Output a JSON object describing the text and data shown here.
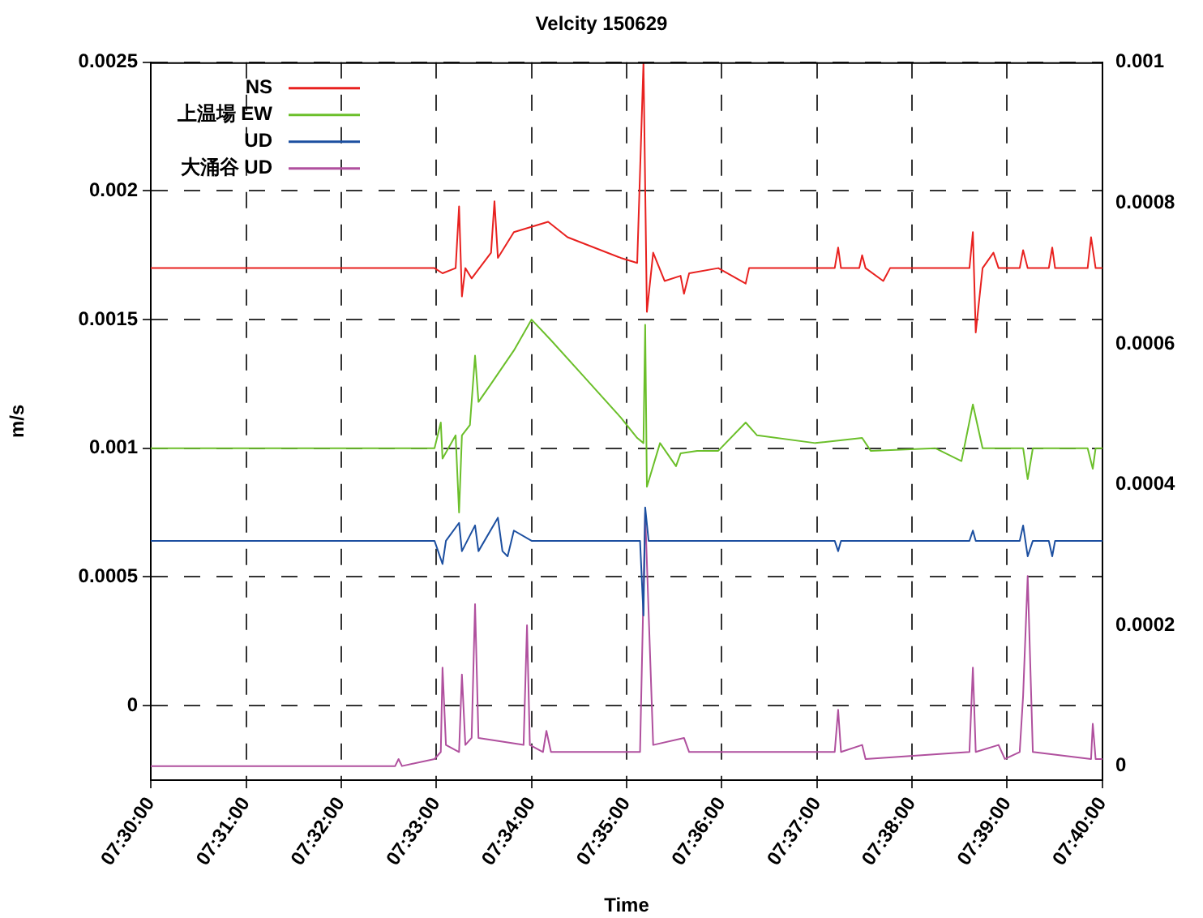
{
  "chart_data": {
    "type": "line",
    "title": "Velcity 150629",
    "xlabel": "Time",
    "ylabel": "m/s",
    "xlim": [
      7.5,
      7.6667
    ],
    "xticks": [
      {
        "value": 7.5,
        "label": "07:30:00"
      },
      {
        "value": 7.5167,
        "label": "07:31:00"
      },
      {
        "value": 7.5333,
        "label": "07:32:00"
      },
      {
        "value": 7.55,
        "label": "07:33:00"
      },
      {
        "value": 7.5667,
        "label": "07:34:00"
      },
      {
        "value": 7.5833,
        "label": "07:35:00"
      },
      {
        "value": 7.6,
        "label": "07:36:00"
      },
      {
        "value": 7.6167,
        "label": "07:37:00"
      },
      {
        "value": 7.6333,
        "label": "07:38:00"
      },
      {
        "value": 7.65,
        "label": "07:39:00"
      },
      {
        "value": 7.6667,
        "label": "07:40:00"
      }
    ],
    "ylim": [
      -0.00029,
      0.0025
    ],
    "yticks": [
      0,
      0.0005,
      0.001,
      0.0015,
      0.002,
      0.0025
    ],
    "y2lim": [
      -2e-05,
      0.001
    ],
    "y2ticks": [
      0,
      0.0002,
      0.0004,
      0.0006,
      0.0008,
      0.001
    ],
    "grid": true,
    "legend": "top left",
    "series": [
      {
        "name": "NS",
        "color": "#e8211f",
        "x": [
          7.5,
          7.5497,
          7.5511,
          7.5534,
          7.554,
          7.5545,
          7.5551,
          7.5562,
          7.5596,
          7.5602,
          7.5608,
          7.5636,
          7.5696,
          7.573,
          7.5823,
          7.5852,
          7.5863,
          7.5869,
          7.588,
          7.59,
          7.5928,
          7.5934,
          7.5943,
          7.5994,
          7.6042,
          7.6048,
          7.6198,
          7.6204,
          7.6209,
          7.6241,
          7.6246,
          7.6252,
          7.6283,
          7.6295,
          7.6434,
          7.644,
          7.6445,
          7.6457,
          7.6476,
          7.6485,
          7.6522,
          7.6528,
          7.6536,
          7.6573,
          7.6579,
          7.6584,
          7.6641,
          7.6647,
          7.6655,
          7.6667
        ],
        "values": [
          0.0017,
          0.0017,
          0.00168,
          0.0017,
          0.00194,
          0.00159,
          0.0017,
          0.00166,
          0.00176,
          0.00196,
          0.00174,
          0.00184,
          0.00188,
          0.00182,
          0.00174,
          0.00172,
          0.0025,
          0.00153,
          0.00176,
          0.00165,
          0.00167,
          0.0016,
          0.00168,
          0.0017,
          0.00164,
          0.0017,
          0.0017,
          0.00178,
          0.0017,
          0.0017,
          0.00175,
          0.0017,
          0.00165,
          0.0017,
          0.0017,
          0.00184,
          0.00145,
          0.0017,
          0.00176,
          0.0017,
          0.0017,
          0.00177,
          0.0017,
          0.0017,
          0.00178,
          0.0017,
          0.0017,
          0.00182,
          0.0017,
          0.0017
        ]
      },
      {
        "name": "上温場 EW",
        "color": "#6bbf2a",
        "x": [
          7.5,
          7.5497,
          7.5508,
          7.5511,
          7.5534,
          7.554,
          7.5545,
          7.5559,
          7.5568,
          7.5574,
          7.5596,
          7.5636,
          7.5667,
          7.5701,
          7.5758,
          7.5823,
          7.5852,
          7.5863,
          7.5866,
          7.5869,
          7.5892,
          7.592,
          7.5928,
          7.5957,
          7.5994,
          7.6042,
          7.6062,
          7.6164,
          7.6246,
          7.6261,
          7.6374,
          7.642,
          7.644,
          7.6457,
          7.6528,
          7.6536,
          7.6545,
          7.6641,
          7.665,
          7.6655,
          7.6667
        ],
        "values": [
          0.001,
          0.001,
          0.0011,
          0.00096,
          0.00105,
          0.00075,
          0.00105,
          0.00109,
          0.00136,
          0.00118,
          0.00125,
          0.00138,
          0.0015,
          0.00142,
          0.00128,
          0.00112,
          0.00104,
          0.00102,
          0.00148,
          0.00085,
          0.00102,
          0.00093,
          0.00098,
          0.00099,
          0.00099,
          0.0011,
          0.00105,
          0.00102,
          0.00104,
          0.00099,
          0.001,
          0.00095,
          0.00117,
          0.001,
          0.001,
          0.00088,
          0.001,
          0.001,
          0.00092,
          0.001,
          0.001
        ]
      },
      {
        "name": "UD",
        "color": "#1c4fa0",
        "x": [
          7.5,
          7.5497,
          7.5511,
          7.5517,
          7.554,
          7.5545,
          7.5568,
          7.5574,
          7.5608,
          7.5616,
          7.5625,
          7.5636,
          7.5667,
          7.5857,
          7.5863,
          7.5866,
          7.5872,
          7.6198,
          7.6204,
          7.6209,
          7.6434,
          7.644,
          7.6445,
          7.6522,
          7.6528,
          7.6536,
          7.6545,
          7.6573,
          7.6579,
          7.6584,
          7.6667
        ],
        "values": [
          0.00064,
          0.00064,
          0.00055,
          0.00064,
          0.00071,
          0.0006,
          0.0007,
          0.0006,
          0.00073,
          0.0006,
          0.00058,
          0.00068,
          0.00064,
          0.00064,
          0.00035,
          0.00077,
          0.00064,
          0.00064,
          0.0006,
          0.00064,
          0.00064,
          0.00068,
          0.00064,
          0.00064,
          0.0007,
          0.00058,
          0.00064,
          0.00064,
          0.00058,
          0.00064,
          0.00064
        ]
      },
      {
        "name": "大涌谷 UD",
        "color": "#b0509e",
        "axis": "y2",
        "x": [
          7.5,
          7.5428,
          7.5434,
          7.544,
          7.5497,
          7.5508,
          7.5511,
          7.5517,
          7.554,
          7.5545,
          7.5551,
          7.5562,
          7.5568,
          7.5574,
          7.5653,
          7.5659,
          7.5664,
          7.5687,
          7.5693,
          7.5701,
          7.5857,
          7.5866,
          7.588,
          7.5934,
          7.5943,
          7.6198,
          7.6204,
          7.6209,
          7.6246,
          7.6252,
          7.6434,
          7.644,
          7.6445,
          7.6485,
          7.6496,
          7.6522,
          7.6528,
          7.6536,
          7.6545,
          7.6647,
          7.665,
          7.6655,
          7.6667
        ],
        "values": [
          0,
          0,
          1e-05,
          0,
          1e-05,
          2e-05,
          0.00014,
          3e-05,
          2e-05,
          0.00013,
          3e-05,
          4e-05,
          0.00023,
          4e-05,
          3e-05,
          0.0002,
          3e-05,
          2e-05,
          5e-05,
          2e-05,
          2e-05,
          0.00036,
          3e-05,
          4e-05,
          2e-05,
          2e-05,
          8e-05,
          2e-05,
          3e-05,
          1e-05,
          2e-05,
          0.00014,
          2e-05,
          3e-05,
          1e-05,
          2e-05,
          0.0001,
          0.00027,
          2e-05,
          1e-05,
          6e-05,
          1e-05,
          1e-05
        ]
      }
    ]
  }
}
